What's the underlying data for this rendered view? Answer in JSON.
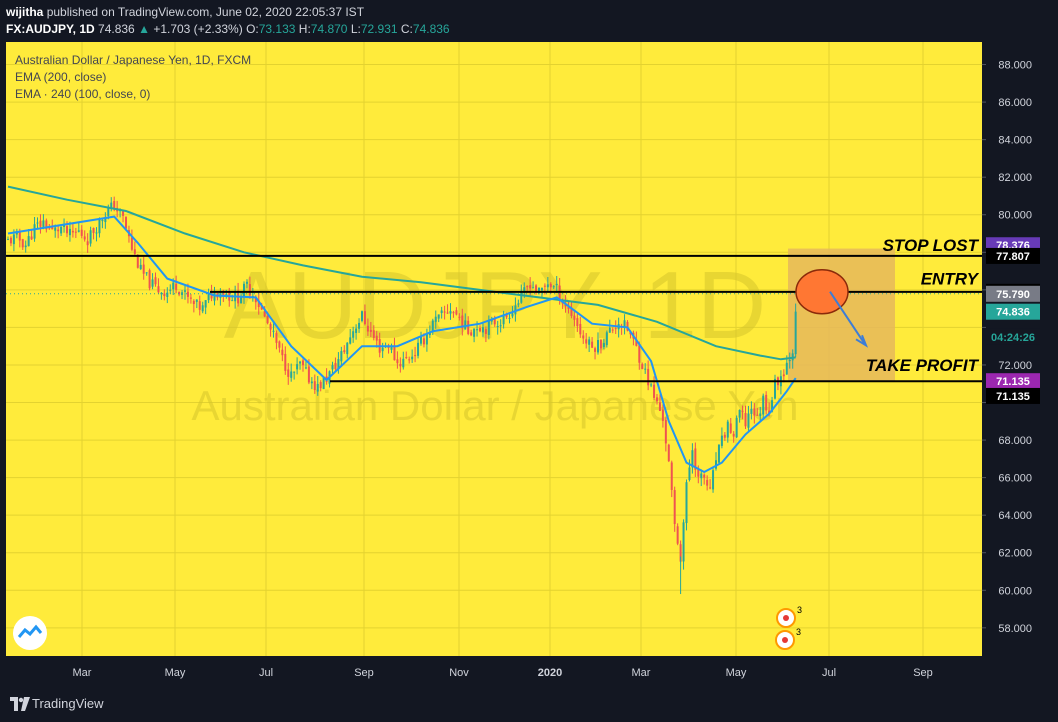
{
  "header": {
    "author": "wijitha",
    "published": "published on TradingView.com, June 02, 2020 22:05:37 IST",
    "symbol": "FX:AUDJPY, 1D",
    "last": "74.836",
    "change": "+1.703 (+2.33%)",
    "o_label": "O:",
    "o_val": "73.133",
    "h_label": "H:",
    "h_val": "74.870",
    "l_label": "L:",
    "l_val": "72.931",
    "c_label": "C:",
    "c_val": "74.836"
  },
  "legend": {
    "title": "Australian Dollar / Japanese Yen, 1D, FXCM",
    "ema1": "EMA (200, close)",
    "ema2": "EMA · 240 (100, close, 0)"
  },
  "watermark": {
    "ticker": "AUDJPY, 1D",
    "name": "Australian Dollar / Japanese Yen"
  },
  "colors": {
    "background": "#ffeb3b",
    "up": "#26a69a",
    "down": "#ef5350",
    "ema_fast": "#2196f3",
    "ema_slow": "#26a69a",
    "zone": "#e6b85c",
    "circle": "#ff7733",
    "stop_badge": "#673ab7",
    "tp_badge": "#9c27b0"
  },
  "footer": {
    "brand": "TradingView"
  },
  "chart_data": {
    "type": "candlestick",
    "ylim": [
      56.5,
      89.2
    ],
    "y_ticks": [
      88,
      86,
      84,
      82,
      80,
      78,
      76,
      74,
      72,
      70,
      68,
      66,
      64,
      62,
      60,
      58
    ],
    "y_tick_labels": [
      "88.000",
      "86.000",
      "84.000",
      "82.000",
      "80.000",
      "",
      "",
      "",
      "72.000",
      "",
      "68.000",
      "66.000",
      "64.000",
      "62.000",
      "60.000",
      "58.000"
    ],
    "x_ticks": [
      "Mar",
      "May",
      "Jul",
      "Sep",
      "Nov",
      "2020",
      "Mar",
      "May",
      "Jul",
      "Sep"
    ],
    "close_path": [
      [
        0,
        78.6
      ],
      [
        3,
        78.8
      ],
      [
        6,
        78.4
      ],
      [
        9,
        79.3
      ],
      [
        12,
        79.6
      ],
      [
        15,
        79.1
      ],
      [
        18,
        79.3
      ],
      [
        21,
        78.9
      ],
      [
        24,
        79.1
      ],
      [
        27,
        78.7
      ],
      [
        30,
        79.4
      ],
      [
        33,
        80.1
      ],
      [
        36,
        80.5
      ],
      [
        39,
        79.8
      ],
      [
        42,
        78.2
      ],
      [
        45,
        77.0
      ],
      [
        48,
        76.4
      ],
      [
        51,
        76.0
      ],
      [
        54,
        75.9
      ],
      [
        57,
        76.3
      ],
      [
        60,
        75.7
      ],
      [
        63,
        75.2
      ],
      [
        66,
        75.0
      ],
      [
        69,
        75.8
      ],
      [
        72,
        76.0
      ],
      [
        75,
        75.7
      ],
      [
        78,
        75.6
      ],
      [
        81,
        76.2
      ],
      [
        84,
        75.6
      ],
      [
        87,
        74.5
      ],
      [
        90,
        73.5
      ],
      [
        93,
        72.3
      ],
      [
        96,
        71.4
      ],
      [
        99,
        72.0
      ],
      [
        102,
        71.3
      ],
      [
        105,
        70.8
      ],
      [
        108,
        71.3
      ],
      [
        111,
        72.0
      ],
      [
        114,
        72.8
      ],
      [
        117,
        73.9
      ],
      [
        120,
        74.6
      ],
      [
        123,
        73.7
      ],
      [
        126,
        72.9
      ],
      [
        129,
        73.1
      ],
      [
        132,
        72.1
      ],
      [
        135,
        72.3
      ],
      [
        138,
        72.7
      ],
      [
        141,
        73.4
      ],
      [
        144,
        74.2
      ],
      [
        147,
        74.6
      ],
      [
        150,
        75.0
      ],
      [
        153,
        74.5
      ],
      [
        156,
        73.8
      ],
      [
        159,
        74.1
      ],
      [
        162,
        74.0
      ],
      [
        165,
        74.3
      ],
      [
        168,
        74.4
      ],
      [
        171,
        75.0
      ],
      [
        174,
        75.6
      ],
      [
        177,
        76.4
      ],
      [
        180,
        75.8
      ],
      [
        183,
        76.4
      ],
      [
        186,
        76.0
      ],
      [
        189,
        75.2
      ],
      [
        192,
        74.5
      ],
      [
        195,
        73.4
      ],
      [
        198,
        72.9
      ],
      [
        201,
        73.2
      ],
      [
        204,
        73.8
      ],
      [
        207,
        74.3
      ],
      [
        210,
        73.9
      ],
      [
        213,
        72.9
      ],
      [
        216,
        71.6
      ],
      [
        219,
        70.3
      ],
      [
        222,
        69.2
      ],
      [
        224,
        66.7
      ],
      [
        226,
        63.4
      ],
      [
        228,
        61.8
      ],
      [
        230,
        65.5
      ],
      [
        232,
        67.6
      ],
      [
        234,
        65.9
      ],
      [
        236,
        66.0
      ],
      [
        238,
        65.2
      ],
      [
        240,
        67.0
      ],
      [
        242,
        67.9
      ],
      [
        244,
        68.8
      ],
      [
        246,
        68.2
      ],
      [
        248,
        69.5
      ],
      [
        250,
        68.9
      ],
      [
        252,
        69.8
      ],
      [
        254,
        69.1
      ],
      [
        256,
        70.2
      ],
      [
        258,
        69.6
      ],
      [
        260,
        71.0
      ],
      [
        262,
        71.4
      ],
      [
        264,
        72.1
      ],
      [
        266,
        72.9
      ],
      [
        267,
        74.84
      ]
    ],
    "ema_200": [
      [
        0,
        81.5
      ],
      [
        20,
        80.8
      ],
      [
        40,
        80.2
      ],
      [
        60,
        79.0
      ],
      [
        80,
        78.0
      ],
      [
        100,
        77.3
      ],
      [
        120,
        76.7
      ],
      [
        140,
        76.4
      ],
      [
        160,
        76.0
      ],
      [
        180,
        75.6
      ],
      [
        200,
        75.2
      ],
      [
        220,
        74.3
      ],
      [
        240,
        73.0
      ],
      [
        255,
        72.5
      ],
      [
        262,
        72.3
      ],
      [
        267,
        72.4
      ]
    ],
    "ema_100": [
      [
        0,
        79.0
      ],
      [
        20,
        79.5
      ],
      [
        36,
        79.9
      ],
      [
        44,
        78.5
      ],
      [
        54,
        76.6
      ],
      [
        70,
        75.7
      ],
      [
        84,
        75.6
      ],
      [
        96,
        73.0
      ],
      [
        108,
        71.2
      ],
      [
        120,
        73.0
      ],
      [
        132,
        73.0
      ],
      [
        144,
        73.8
      ],
      [
        160,
        74.2
      ],
      [
        176,
        75.1
      ],
      [
        186,
        75.6
      ],
      [
        198,
        74.2
      ],
      [
        210,
        74.0
      ],
      [
        218,
        72.2
      ],
      [
        224,
        69.0
      ],
      [
        230,
        66.8
      ],
      [
        236,
        66.3
      ],
      [
        242,
        66.8
      ],
      [
        250,
        68.3
      ],
      [
        258,
        69.4
      ],
      [
        264,
        70.6
      ],
      [
        267,
        71.3
      ]
    ],
    "levels": [
      {
        "label": "STOP  LOST",
        "value": 78.376,
        "price": "78.376",
        "line_value": 77.807,
        "line_price": "77.807"
      },
      {
        "label": "ENTRY",
        "value": 75.894,
        "price": "75.894"
      },
      {
        "label": "TAKE PROFIT",
        "value": 71.135,
        "price": "71.135"
      }
    ],
    "last_price": "74.836",
    "dotted_price": "75.790",
    "countdown": "04:24:26",
    "zone": {
      "top": 78.2,
      "bottom": 71.1
    },
    "event_counts": [
      "3",
      "3"
    ]
  }
}
